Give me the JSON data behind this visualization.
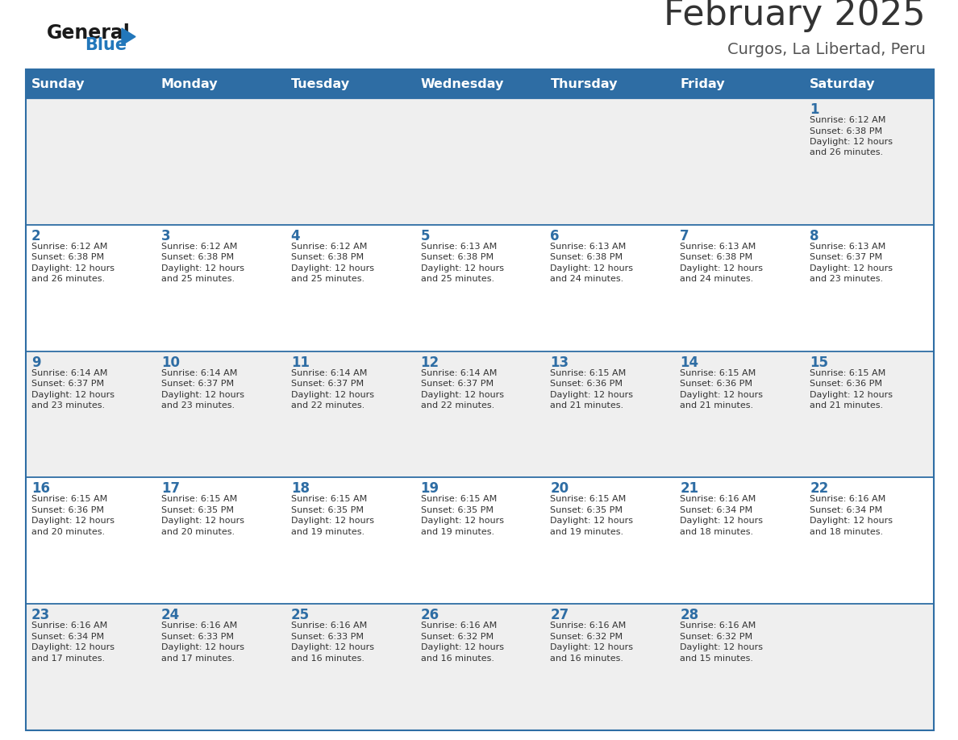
{
  "title": "February 2025",
  "subtitle": "Curgos, La Libertad, Peru",
  "days_of_week": [
    "Sunday",
    "Monday",
    "Tuesday",
    "Wednesday",
    "Thursday",
    "Friday",
    "Saturday"
  ],
  "header_bg": "#2E6DA4",
  "header_text_color": "#FFFFFF",
  "row_bg_light": "#EFEFEF",
  "row_bg_white": "#FFFFFF",
  "cell_border_color": "#2E6DA4",
  "day_number_color": "#2E6DA4",
  "info_text_color": "#333333",
  "title_color": "#333333",
  "subtitle_color": "#555555",
  "logo_general_color": "#1A1A1A",
  "logo_blue_color": "#2277BB",
  "calendar": [
    [
      null,
      null,
      null,
      null,
      null,
      null,
      {
        "day": 1,
        "sunrise": "6:12 AM",
        "sunset": "6:38 PM",
        "daylight_line3": "Daylight: 12 hours",
        "daylight_line4": "and 26 minutes."
      }
    ],
    [
      {
        "day": 2,
        "sunrise": "6:12 AM",
        "sunset": "6:38 PM",
        "daylight_line3": "Daylight: 12 hours",
        "daylight_line4": "and 26 minutes."
      },
      {
        "day": 3,
        "sunrise": "6:12 AM",
        "sunset": "6:38 PM",
        "daylight_line3": "Daylight: 12 hours",
        "daylight_line4": "and 25 minutes."
      },
      {
        "day": 4,
        "sunrise": "6:12 AM",
        "sunset": "6:38 PM",
        "daylight_line3": "Daylight: 12 hours",
        "daylight_line4": "and 25 minutes."
      },
      {
        "day": 5,
        "sunrise": "6:13 AM",
        "sunset": "6:38 PM",
        "daylight_line3": "Daylight: 12 hours",
        "daylight_line4": "and 25 minutes."
      },
      {
        "day": 6,
        "sunrise": "6:13 AM",
        "sunset": "6:38 PM",
        "daylight_line3": "Daylight: 12 hours",
        "daylight_line4": "and 24 minutes."
      },
      {
        "day": 7,
        "sunrise": "6:13 AM",
        "sunset": "6:38 PM",
        "daylight_line3": "Daylight: 12 hours",
        "daylight_line4": "and 24 minutes."
      },
      {
        "day": 8,
        "sunrise": "6:13 AM",
        "sunset": "6:37 PM",
        "daylight_line3": "Daylight: 12 hours",
        "daylight_line4": "and 23 minutes."
      }
    ],
    [
      {
        "day": 9,
        "sunrise": "6:14 AM",
        "sunset": "6:37 PM",
        "daylight_line3": "Daylight: 12 hours",
        "daylight_line4": "and 23 minutes."
      },
      {
        "day": 10,
        "sunrise": "6:14 AM",
        "sunset": "6:37 PM",
        "daylight_line3": "Daylight: 12 hours",
        "daylight_line4": "and 23 minutes."
      },
      {
        "day": 11,
        "sunrise": "6:14 AM",
        "sunset": "6:37 PM",
        "daylight_line3": "Daylight: 12 hours",
        "daylight_line4": "and 22 minutes."
      },
      {
        "day": 12,
        "sunrise": "6:14 AM",
        "sunset": "6:37 PM",
        "daylight_line3": "Daylight: 12 hours",
        "daylight_line4": "and 22 minutes."
      },
      {
        "day": 13,
        "sunrise": "6:15 AM",
        "sunset": "6:36 PM",
        "daylight_line3": "Daylight: 12 hours",
        "daylight_line4": "and 21 minutes."
      },
      {
        "day": 14,
        "sunrise": "6:15 AM",
        "sunset": "6:36 PM",
        "daylight_line3": "Daylight: 12 hours",
        "daylight_line4": "and 21 minutes."
      },
      {
        "day": 15,
        "sunrise": "6:15 AM",
        "sunset": "6:36 PM",
        "daylight_line3": "Daylight: 12 hours",
        "daylight_line4": "and 21 minutes."
      }
    ],
    [
      {
        "day": 16,
        "sunrise": "6:15 AM",
        "sunset": "6:36 PM",
        "daylight_line3": "Daylight: 12 hours",
        "daylight_line4": "and 20 minutes."
      },
      {
        "day": 17,
        "sunrise": "6:15 AM",
        "sunset": "6:35 PM",
        "daylight_line3": "Daylight: 12 hours",
        "daylight_line4": "and 20 minutes."
      },
      {
        "day": 18,
        "sunrise": "6:15 AM",
        "sunset": "6:35 PM",
        "daylight_line3": "Daylight: 12 hours",
        "daylight_line4": "and 19 minutes."
      },
      {
        "day": 19,
        "sunrise": "6:15 AM",
        "sunset": "6:35 PM",
        "daylight_line3": "Daylight: 12 hours",
        "daylight_line4": "and 19 minutes."
      },
      {
        "day": 20,
        "sunrise": "6:15 AM",
        "sunset": "6:35 PM",
        "daylight_line3": "Daylight: 12 hours",
        "daylight_line4": "and 19 minutes."
      },
      {
        "day": 21,
        "sunrise": "6:16 AM",
        "sunset": "6:34 PM",
        "daylight_line3": "Daylight: 12 hours",
        "daylight_line4": "and 18 minutes."
      },
      {
        "day": 22,
        "sunrise": "6:16 AM",
        "sunset": "6:34 PM",
        "daylight_line3": "Daylight: 12 hours",
        "daylight_line4": "and 18 minutes."
      }
    ],
    [
      {
        "day": 23,
        "sunrise": "6:16 AM",
        "sunset": "6:34 PM",
        "daylight_line3": "Daylight: 12 hours",
        "daylight_line4": "and 17 minutes."
      },
      {
        "day": 24,
        "sunrise": "6:16 AM",
        "sunset": "6:33 PM",
        "daylight_line3": "Daylight: 12 hours",
        "daylight_line4": "and 17 minutes."
      },
      {
        "day": 25,
        "sunrise": "6:16 AM",
        "sunset": "6:33 PM",
        "daylight_line3": "Daylight: 12 hours",
        "daylight_line4": "and 16 minutes."
      },
      {
        "day": 26,
        "sunrise": "6:16 AM",
        "sunset": "6:32 PM",
        "daylight_line3": "Daylight: 12 hours",
        "daylight_line4": "and 16 minutes."
      },
      {
        "day": 27,
        "sunrise": "6:16 AM",
        "sunset": "6:32 PM",
        "daylight_line3": "Daylight: 12 hours",
        "daylight_line4": "and 16 minutes."
      },
      {
        "day": 28,
        "sunrise": "6:16 AM",
        "sunset": "6:32 PM",
        "daylight_line3": "Daylight: 12 hours",
        "daylight_line4": "and 15 minutes."
      },
      null
    ]
  ]
}
